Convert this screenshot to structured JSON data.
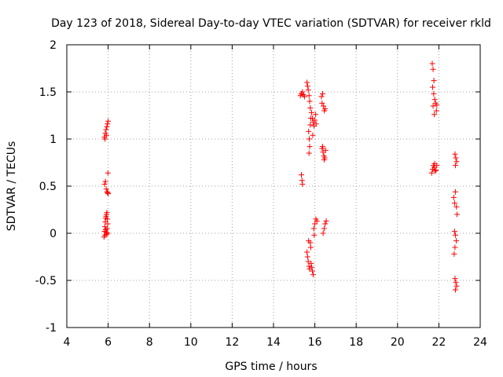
{
  "chart_data": {
    "type": "scatter",
    "title": "Day 123 of 2018, Sidereal Day-to-day VTEC variation (SDTVAR) for receiver rkld",
    "xlabel": "GPS time / hours",
    "ylabel": "SDTVAR / TECUs",
    "xlim": [
      4,
      24
    ],
    "ylim": [
      -1,
      2
    ],
    "xticks": [
      4,
      6,
      8,
      10,
      12,
      14,
      16,
      18,
      20,
      22,
      24
    ],
    "xtick_labels": [
      "4",
      "6",
      "8",
      "10",
      "12",
      "14",
      "16",
      "18",
      "20",
      "22",
      "24"
    ],
    "yticks": [
      -1,
      -0.5,
      0,
      0.5,
      1,
      1.5,
      2
    ],
    "ytick_labels": [
      "-1",
      "-0.5",
      "0",
      "0.5",
      "1",
      "1.5",
      "2"
    ],
    "grid": true,
    "marker": "+",
    "color": "#ff0000",
    "series": [
      {
        "name": "SDTVAR",
        "points": [
          [
            5.82,
            1.02
          ],
          [
            5.86,
            1.06
          ],
          [
            5.9,
            1.1
          ],
          [
            5.94,
            1.13
          ],
          [
            5.97,
            1.16
          ],
          [
            6.0,
            1.19
          ],
          [
            5.85,
            1.0
          ],
          [
            5.92,
            1.04
          ],
          [
            5.83,
            0.52
          ],
          [
            5.87,
            0.55
          ],
          [
            5.91,
            0.47
          ],
          [
            5.95,
            0.44
          ],
          [
            5.98,
            0.43
          ],
          [
            6.0,
            0.42
          ],
          [
            5.99,
            0.64
          ],
          [
            5.8,
            -0.04
          ],
          [
            5.82,
            0.02
          ],
          [
            5.84,
            0.07
          ],
          [
            5.86,
            0.12
          ],
          [
            5.88,
            0.16
          ],
          [
            5.9,
            0.18
          ],
          [
            5.92,
            0.2
          ],
          [
            5.94,
            0.22
          ],
          [
            5.96,
            0.15
          ],
          [
            5.98,
            0.1
          ],
          [
            5.85,
            -0.02
          ],
          [
            5.88,
            0.04
          ],
          [
            5.91,
            0.01
          ],
          [
            5.93,
            -0.01
          ],
          [
            5.95,
            0.05
          ],
          [
            5.97,
            0.0
          ],
          [
            15.3,
            1.46
          ],
          [
            15.35,
            1.48
          ],
          [
            15.4,
            1.5
          ],
          [
            15.45,
            1.47
          ],
          [
            15.5,
            1.45
          ],
          [
            15.62,
            1.6
          ],
          [
            15.65,
            1.56
          ],
          [
            15.68,
            1.52
          ],
          [
            15.72,
            1.46
          ],
          [
            15.75,
            1.4
          ],
          [
            15.78,
            1.33
          ],
          [
            15.7,
            1.08
          ],
          [
            15.73,
            1.0
          ],
          [
            15.75,
            0.92
          ],
          [
            15.72,
            0.85
          ],
          [
            15.78,
            1.15
          ],
          [
            15.8,
            1.22
          ],
          [
            15.84,
            1.28
          ],
          [
            15.88,
            1.22
          ],
          [
            15.92,
            1.18
          ],
          [
            15.96,
            1.14
          ],
          [
            16.0,
            1.2
          ],
          [
            16.04,
            1.26
          ],
          [
            16.06,
            1.16
          ],
          [
            15.9,
            1.04
          ],
          [
            15.35,
            0.62
          ],
          [
            15.38,
            0.56
          ],
          [
            15.4,
            0.52
          ],
          [
            16.32,
            1.45
          ],
          [
            16.38,
            1.48
          ],
          [
            16.42,
            1.35
          ],
          [
            16.46,
            1.3
          ],
          [
            16.5,
            1.32
          ],
          [
            16.35,
            1.38
          ],
          [
            16.35,
            0.9
          ],
          [
            16.4,
            0.86
          ],
          [
            16.44,
            0.82
          ],
          [
            16.48,
            0.8
          ],
          [
            16.52,
            0.88
          ],
          [
            16.38,
            0.92
          ],
          [
            16.45,
            0.78
          ],
          [
            15.62,
            -0.2
          ],
          [
            15.65,
            -0.25
          ],
          [
            15.68,
            -0.3
          ],
          [
            15.72,
            -0.35
          ],
          [
            15.75,
            -0.38
          ],
          [
            15.78,
            -0.1
          ],
          [
            15.8,
            -0.15
          ],
          [
            15.82,
            -0.32
          ],
          [
            15.85,
            -0.36
          ],
          [
            15.88,
            -0.4
          ],
          [
            15.92,
            -0.44
          ],
          [
            15.7,
            -0.08
          ],
          [
            15.95,
            0.05
          ],
          [
            16.0,
            0.1
          ],
          [
            16.05,
            0.15
          ],
          [
            16.1,
            0.13
          ],
          [
            15.97,
            -0.02
          ],
          [
            16.4,
            0.0
          ],
          [
            16.45,
            0.05
          ],
          [
            16.5,
            0.1
          ],
          [
            16.55,
            0.13
          ],
          [
            21.68,
            1.8
          ],
          [
            21.72,
            1.74
          ],
          [
            21.76,
            1.62
          ],
          [
            21.7,
            1.55
          ],
          [
            21.75,
            1.48
          ],
          [
            21.8,
            1.42
          ],
          [
            21.84,
            1.38
          ],
          [
            21.88,
            1.3
          ],
          [
            21.78,
            1.26
          ],
          [
            21.72,
            1.35
          ],
          [
            21.9,
            1.36
          ],
          [
            21.65,
            0.64
          ],
          [
            21.7,
            0.68
          ],
          [
            21.74,
            0.72
          ],
          [
            21.78,
            0.7
          ],
          [
            21.82,
            0.66
          ],
          [
            21.86,
            0.67
          ],
          [
            21.9,
            0.72
          ],
          [
            21.8,
            0.74
          ],
          [
            22.78,
            0.84
          ],
          [
            22.82,
            0.8
          ],
          [
            22.86,
            0.76
          ],
          [
            22.8,
            0.72
          ],
          [
            22.72,
            0.38
          ],
          [
            22.76,
            0.32
          ],
          [
            22.8,
            0.44
          ],
          [
            22.85,
            0.28
          ],
          [
            22.88,
            0.2
          ],
          [
            22.76,
            0.02
          ],
          [
            22.8,
            -0.02
          ],
          [
            22.84,
            -0.08
          ],
          [
            22.78,
            -0.15
          ],
          [
            22.74,
            -0.22
          ],
          [
            22.78,
            -0.48
          ],
          [
            22.82,
            -0.52
          ],
          [
            22.86,
            -0.56
          ],
          [
            22.8,
            -0.6
          ]
        ]
      }
    ]
  }
}
